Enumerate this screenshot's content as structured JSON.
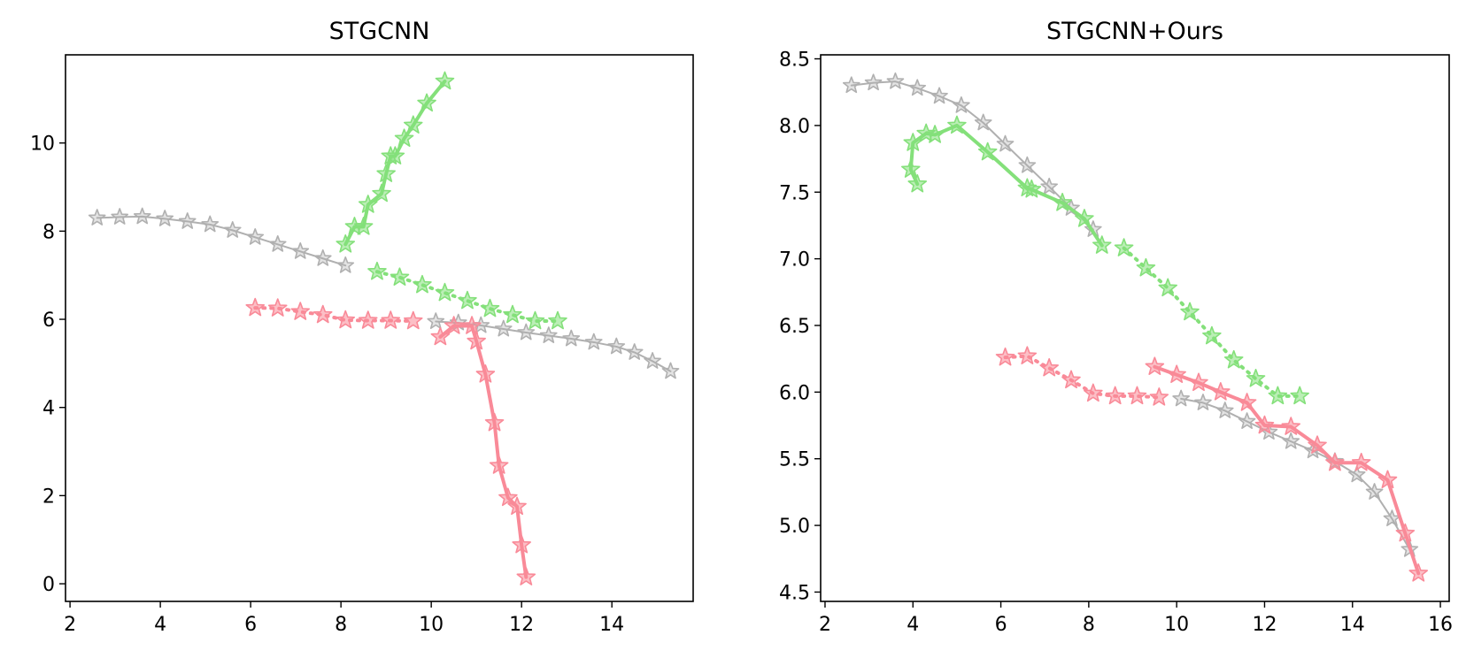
{
  "colors": {
    "gray": "#b0b0b0",
    "green": "#84e07a",
    "red": "#f98a98"
  },
  "chart_data": [
    {
      "type": "line",
      "title": "STGCNN",
      "xlim": [
        1.9,
        15.8
      ],
      "ylim": [
        -0.4,
        12.0
      ],
      "xticks": [
        2,
        4,
        6,
        8,
        10,
        12,
        14
      ],
      "yticks": [
        0,
        2,
        4,
        6,
        8,
        10
      ],
      "grid": false,
      "series": [
        {
          "color": "gray",
          "style": "solid",
          "width": 2,
          "x": [
            2.6,
            3.1,
            3.6,
            4.1,
            4.6,
            5.1,
            5.6,
            6.1,
            6.6,
            7.1,
            7.6,
            8.1
          ],
          "y": [
            8.3,
            8.32,
            8.33,
            8.28,
            8.22,
            8.15,
            8.02,
            7.86,
            7.7,
            7.54,
            7.38,
            7.22
          ]
        },
        {
          "color": "gray",
          "style": "solid",
          "width": 2,
          "x": [
            10.1,
            10.6,
            11.1,
            11.6,
            12.1,
            12.6,
            13.1,
            13.6,
            14.1,
            14.5,
            14.9,
            15.3
          ],
          "y": [
            5.95,
            5.92,
            5.86,
            5.78,
            5.7,
            5.63,
            5.56,
            5.48,
            5.38,
            5.25,
            5.05,
            4.82
          ]
        },
        {
          "color": "green",
          "style": "dotted",
          "width": 4,
          "x": [
            8.8,
            9.3,
            9.8,
            10.3,
            10.8,
            11.3,
            11.8,
            12.3,
            12.8
          ],
          "y": [
            7.08,
            6.95,
            6.78,
            6.6,
            6.42,
            6.24,
            6.1,
            5.96,
            5.96
          ]
        },
        {
          "color": "green",
          "style": "solid",
          "width": 4,
          "x": [
            8.1,
            8.3,
            8.5,
            8.6,
            8.9,
            9.0,
            9.1,
            9.2,
            9.4,
            9.6,
            9.9,
            10.3
          ],
          "y": [
            7.7,
            8.1,
            8.1,
            8.6,
            8.85,
            9.3,
            9.7,
            9.7,
            10.1,
            10.4,
            10.9,
            11.4
          ]
        },
        {
          "color": "red",
          "style": "dotted",
          "width": 4,
          "x": [
            6.1,
            6.6,
            7.1,
            7.6,
            8.1,
            8.6,
            9.1,
            9.6
          ],
          "y": [
            6.26,
            6.25,
            6.17,
            6.1,
            5.98,
            5.97,
            5.97,
            5.96
          ]
        },
        {
          "color": "red",
          "style": "solid",
          "width": 4,
          "x": [
            10.2,
            10.5,
            10.9,
            11.0,
            11.2,
            11.4,
            11.5,
            11.7,
            11.9,
            12.0,
            12.1
          ],
          "y": [
            5.6,
            5.85,
            5.85,
            5.5,
            4.75,
            3.65,
            2.68,
            1.95,
            1.75,
            0.88,
            0.15
          ]
        }
      ]
    },
    {
      "type": "line",
      "title": "STGCNN+Ours",
      "xlim": [
        1.9,
        16.2
      ],
      "ylim": [
        4.43,
        8.53
      ],
      "xticks": [
        2,
        4,
        6,
        8,
        10,
        12,
        14,
        16
      ],
      "yticks": [
        4.5,
        5.0,
        5.5,
        6.0,
        6.5,
        7.0,
        7.5,
        8.0,
        8.5
      ],
      "ytick_labels": [
        "4.5",
        "5.0",
        "5.5",
        "6.0",
        "6.5",
        "7.0",
        "7.5",
        "8.0",
        "8.5"
      ],
      "grid": false,
      "series": [
        {
          "color": "gray",
          "style": "solid",
          "width": 2,
          "x": [
            2.6,
            3.1,
            3.6,
            4.1,
            4.6,
            5.1,
            5.6,
            6.1,
            6.6,
            7.1,
            7.6,
            8.1
          ],
          "y": [
            8.3,
            8.32,
            8.33,
            8.28,
            8.22,
            8.15,
            8.02,
            7.86,
            7.7,
            7.54,
            7.38,
            7.22
          ]
        },
        {
          "color": "gray",
          "style": "solid",
          "width": 2,
          "x": [
            10.1,
            10.6,
            11.1,
            11.6,
            12.1,
            12.6,
            13.1,
            13.6,
            14.1,
            14.5,
            14.9,
            15.3
          ],
          "y": [
            5.95,
            5.92,
            5.86,
            5.78,
            5.7,
            5.63,
            5.56,
            5.48,
            5.38,
            5.25,
            5.05,
            4.82
          ]
        },
        {
          "color": "green",
          "style": "dotted",
          "width": 4,
          "x": [
            8.8,
            9.3,
            9.8,
            10.3,
            10.8,
            11.3,
            11.8,
            12.3,
            12.8
          ],
          "y": [
            7.08,
            6.93,
            6.78,
            6.6,
            6.42,
            6.24,
            6.1,
            5.97,
            5.97
          ]
        },
        {
          "color": "green",
          "style": "solid",
          "width": 4,
          "x": [
            4.1,
            3.95,
            4.0,
            4.3,
            4.5,
            5.0,
            5.7,
            6.6,
            6.7,
            7.4,
            7.9,
            8.3
          ],
          "y": [
            7.56,
            7.67,
            7.87,
            7.94,
            7.93,
            8.0,
            7.8,
            7.53,
            7.52,
            7.42,
            7.3,
            7.1
          ]
        },
        {
          "color": "red",
          "style": "dotted",
          "width": 4,
          "x": [
            6.1,
            6.6,
            7.1,
            7.6,
            8.1,
            8.6,
            9.1,
            9.6
          ],
          "y": [
            6.26,
            6.27,
            6.18,
            6.09,
            5.99,
            5.97,
            5.97,
            5.96
          ]
        },
        {
          "color": "red",
          "style": "solid",
          "width": 4,
          "x": [
            9.5,
            10.0,
            10.5,
            11.0,
            11.6,
            12.0,
            12.6,
            13.2,
            13.6,
            14.2,
            14.8,
            15.2,
            15.5
          ],
          "y": [
            6.19,
            6.13,
            6.07,
            6.0,
            5.92,
            5.75,
            5.74,
            5.6,
            5.47,
            5.47,
            5.34,
            4.94,
            4.64
          ]
        }
      ]
    }
  ]
}
